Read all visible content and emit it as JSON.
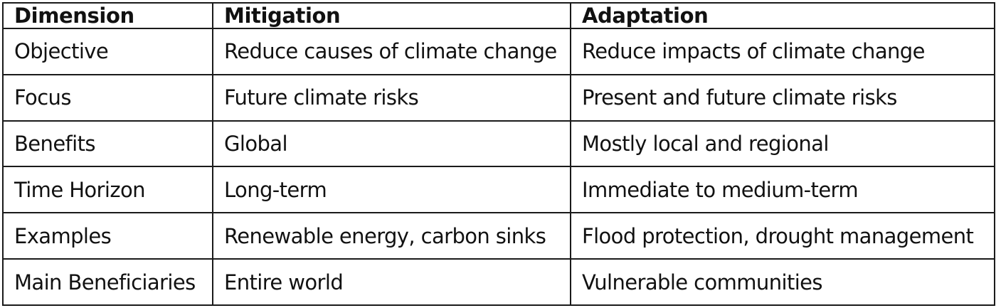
{
  "table": {
    "headers": [
      "Dimension",
      "Mitigation",
      "Adaptation"
    ],
    "rows": [
      [
        "Objective",
        "Reduce causes of climate change",
        "Reduce impacts of climate change"
      ],
      [
        "Focus",
        "Future climate risks",
        "Present and future climate risks"
      ],
      [
        "Benefits",
        "Global",
        "Mostly local and regional"
      ],
      [
        "Time Horizon",
        "Long-term",
        "Immediate to medium-term"
      ],
      [
        "Examples",
        "Renewable energy, carbon sinks",
        "Flood protection, drought management"
      ],
      [
        "Main Beneficiaries",
        "Entire world",
        "Vulnerable communities"
      ]
    ]
  }
}
